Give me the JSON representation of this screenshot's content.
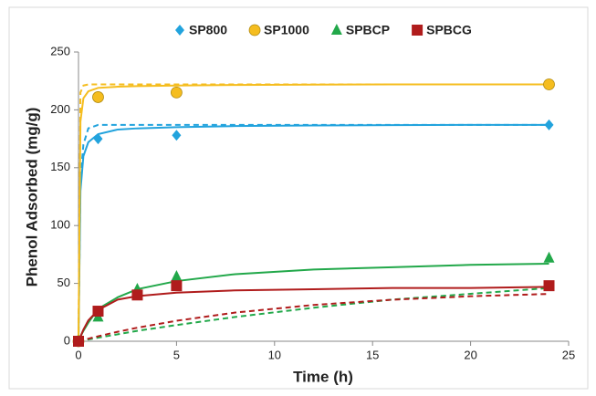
{
  "chart_data": {
    "type": "scatter",
    "x_label": "Time (h)",
    "y_label": "Phenol  Adsorbed (mg/g)",
    "xlim": [
      0,
      25
    ],
    "xticks": [
      0,
      5,
      10,
      15,
      20,
      25
    ],
    "ylim": [
      0,
      250
    ],
    "yticks": [
      0,
      50,
      100,
      150,
      200,
      250
    ],
    "grid": false,
    "legend": "top",
    "series": [
      {
        "name": "SP800",
        "color": "#22a3dd",
        "marker": "diamond",
        "x": [
          0,
          1,
          5,
          24
        ],
        "values": [
          0,
          175,
          178,
          187
        ],
        "fit_solid": {
          "x": [
            0,
            0.1,
            0.25,
            0.5,
            1,
            2,
            3,
            5,
            8,
            12,
            16,
            20,
            24
          ],
          "values": [
            0,
            130,
            160,
            172,
            179,
            183,
            184,
            185,
            186,
            186.5,
            186.8,
            187,
            187
          ]
        },
        "fit_dashed": {
          "x": [
            0,
            0.1,
            0.25,
            0.5,
            1,
            2,
            3,
            5,
            8,
            12,
            16,
            20,
            24
          ],
          "values": [
            0,
            140,
            170,
            184,
            187,
            187,
            187,
            187,
            187,
            187,
            187,
            187,
            187
          ]
        }
      },
      {
        "name": "SP1000",
        "color": "#f5bd1f",
        "marker": "circle",
        "x": [
          0,
          1,
          5,
          24
        ],
        "values": [
          0,
          211,
          215,
          222
        ],
        "fit_solid": {
          "x": [
            0,
            0.1,
            0.25,
            0.5,
            1,
            2,
            3,
            5,
            8,
            12,
            16,
            20,
            24
          ],
          "values": [
            0,
            190,
            210,
            216,
            219,
            220,
            220.5,
            221,
            221.5,
            221.8,
            222,
            222,
            222
          ]
        },
        "fit_dashed": {
          "x": [
            0,
            0.1,
            0.25,
            0.5,
            1,
            2,
            3,
            5,
            8,
            12,
            16,
            20,
            24
          ],
          "values": [
            0,
            215,
            221,
            222,
            222,
            222,
            222,
            222,
            222,
            222,
            222,
            222,
            222
          ]
        }
      },
      {
        "name": "SPBCP",
        "color": "#22a84a",
        "marker": "triangle",
        "x": [
          0,
          1,
          3,
          5,
          24
        ],
        "values": [
          0,
          21,
          45,
          56,
          72
        ],
        "fit_solid": {
          "x": [
            0,
            0.1,
            0.25,
            0.5,
            1,
            2,
            3,
            5,
            8,
            12,
            16,
            20,
            24
          ],
          "values": [
            0,
            4,
            9,
            16,
            28,
            38,
            45,
            52,
            58,
            62,
            64,
            66,
            67
          ]
        },
        "fit_dashed": {
          "x": [
            0,
            0.1,
            0.25,
            0.5,
            1,
            2,
            3,
            5,
            8,
            12,
            16,
            20,
            24
          ],
          "values": [
            0,
            0.3,
            0.8,
            1.6,
            3.1,
            6,
            9,
            14,
            21,
            29,
            36,
            41,
            46
          ]
        }
      },
      {
        "name": "SPBCG",
        "color": "#b01c1c",
        "marker": "square",
        "x": [
          0,
          1,
          3,
          5,
          24
        ],
        "values": [
          0,
          26,
          40,
          48,
          48
        ],
        "fit_solid": {
          "x": [
            0,
            0.1,
            0.25,
            0.5,
            1,
            2,
            3,
            5,
            8,
            12,
            16,
            20,
            24
          ],
          "values": [
            0,
            4,
            10,
            18,
            27,
            36,
            39,
            42,
            44,
            45,
            46,
            46,
            47
          ]
        },
        "fit_dashed": {
          "x": [
            0,
            0.1,
            0.25,
            0.5,
            1,
            2,
            3,
            5,
            8,
            12,
            16,
            20,
            24
          ],
          "values": [
            0,
            0.4,
            1.1,
            2.2,
            4.3,
            8.2,
            11.7,
            17.7,
            24.8,
            31.4,
            35.9,
            38.9,
            40.9
          ]
        }
      }
    ]
  }
}
